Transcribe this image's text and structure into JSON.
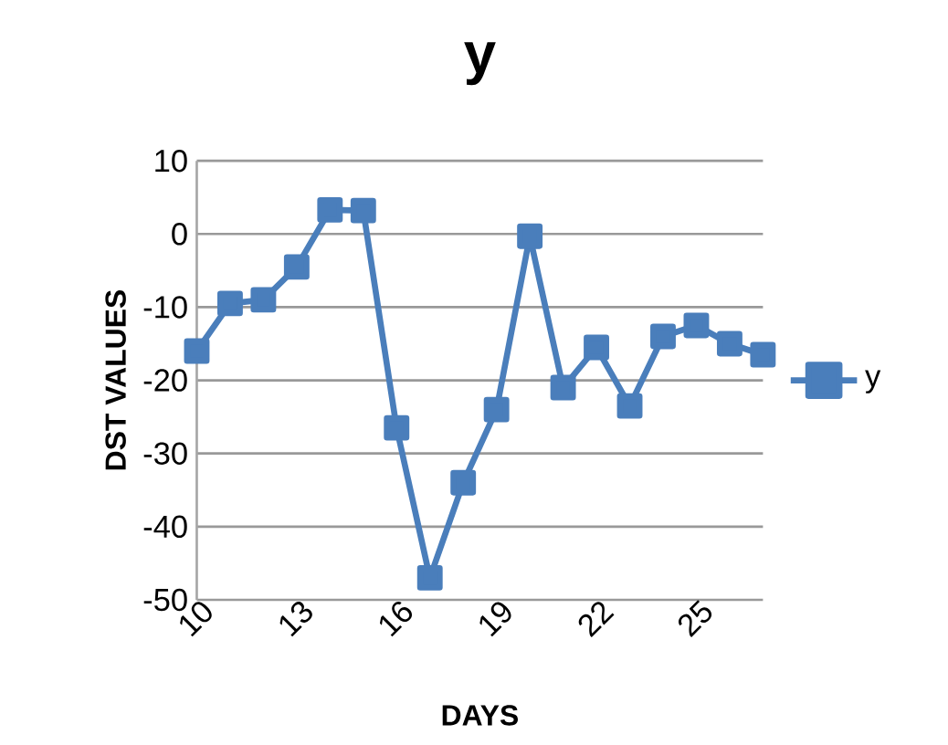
{
  "chart_data": {
    "type": "line",
    "title": "y",
    "xlabel": "DAYS",
    "ylabel": "DST VALUES",
    "categories": [
      "10",
      null,
      null,
      "13",
      null,
      null,
      "16",
      null,
      null,
      "19",
      null,
      null,
      "22",
      null,
      null,
      "25",
      null,
      null
    ],
    "series": [
      {
        "name": "y",
        "color": "#4a7ebb",
        "values": [
          -16,
          -9.5,
          -9,
          -4.5,
          3.3,
          3.2,
          -26.5,
          -47,
          -34,
          -24,
          -0.3,
          -21,
          -15.5,
          -23.5,
          -14,
          -12.5,
          -15,
          -16.5
        ]
      }
    ],
    "ylim": [
      -50,
      10
    ],
    "yticks": [
      -50,
      -40,
      -30,
      -20,
      -10,
      0,
      10
    ],
    "grid": "y",
    "legend": "right",
    "marker": "square",
    "line_style": "solid"
  }
}
